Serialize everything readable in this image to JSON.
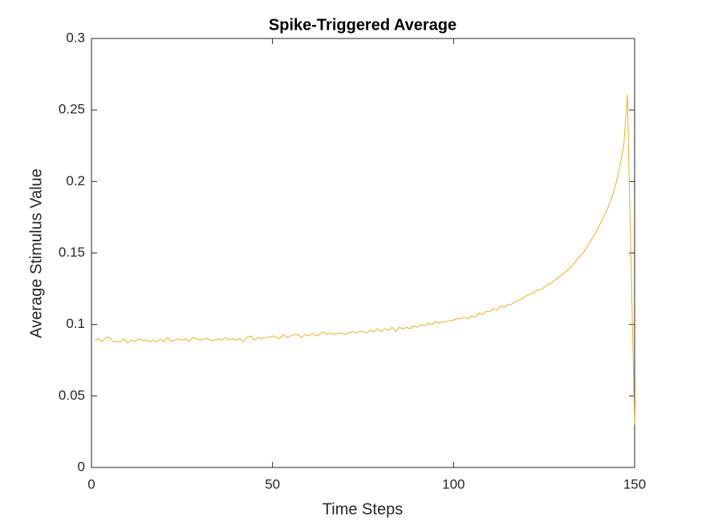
{
  "chart_data": {
    "type": "line",
    "title": "Spike-Triggered Average",
    "x_label": "Time Steps",
    "y_label": "Average Stimulus Value",
    "color": "#EDB120",
    "x": [
      1,
      2,
      3,
      4,
      5,
      6,
      7,
      8,
      9,
      10,
      11,
      12,
      13,
      14,
      15,
      16,
      17,
      18,
      19,
      20,
      21,
      22,
      23,
      24,
      25,
      26,
      27,
      28,
      29,
      30,
      31,
      32,
      33,
      34,
      35,
      36,
      37,
      38,
      39,
      40,
      41,
      42,
      43,
      44,
      45,
      46,
      47,
      48,
      49,
      50,
      51,
      52,
      53,
      54,
      55,
      56,
      57,
      58,
      59,
      60,
      61,
      62,
      63,
      64,
      65,
      66,
      67,
      68,
      69,
      70,
      71,
      72,
      73,
      74,
      75,
      76,
      77,
      78,
      79,
      80,
      81,
      82,
      83,
      84,
      85,
      86,
      87,
      88,
      89,
      90,
      91,
      92,
      93,
      94,
      95,
      96,
      97,
      98,
      99,
      100,
      101,
      102,
      103,
      104,
      105,
      106,
      107,
      108,
      109,
      110,
      111,
      112,
      113,
      114,
      115,
      116,
      117,
      118,
      119,
      120,
      121,
      122,
      123,
      124,
      125,
      126,
      127,
      128,
      129,
      130,
      131,
      132,
      133,
      134,
      135,
      136,
      137,
      138,
      139,
      140,
      141,
      142,
      143,
      144,
      145,
      146,
      147,
      148,
      149,
      150
    ],
    "values": [
      0.089,
      0.09,
      0.088,
      0.091,
      0.091,
      0.088,
      0.088,
      0.088,
      0.09,
      0.087,
      0.089,
      0.088,
      0.09,
      0.089,
      0.089,
      0.088,
      0.089,
      0.088,
      0.09,
      0.088,
      0.091,
      0.088,
      0.089,
      0.09,
      0.089,
      0.09,
      0.088,
      0.091,
      0.09,
      0.089,
      0.09,
      0.09,
      0.089,
      0.089,
      0.09,
      0.089,
      0.091,
      0.089,
      0.09,
      0.089,
      0.09,
      0.088,
      0.091,
      0.092,
      0.089,
      0.091,
      0.09,
      0.091,
      0.091,
      0.092,
      0.091,
      0.09,
      0.093,
      0.091,
      0.092,
      0.093,
      0.093,
      0.091,
      0.093,
      0.092,
      0.094,
      0.092,
      0.093,
      0.095,
      0.093,
      0.094,
      0.093,
      0.094,
      0.094,
      0.093,
      0.094,
      0.095,
      0.094,
      0.095,
      0.095,
      0.094,
      0.096,
      0.095,
      0.097,
      0.095,
      0.097,
      0.096,
      0.098,
      0.095,
      0.098,
      0.097,
      0.098,
      0.097,
      0.099,
      0.098,
      0.1,
      0.099,
      0.101,
      0.1,
      0.102,
      0.101,
      0.102,
      0.102,
      0.103,
      0.103,
      0.104,
      0.104,
      0.105,
      0.104,
      0.106,
      0.105,
      0.108,
      0.107,
      0.109,
      0.109,
      0.111,
      0.11,
      0.113,
      0.112,
      0.114,
      0.114,
      0.116,
      0.117,
      0.118,
      0.12,
      0.121,
      0.122,
      0.124,
      0.124,
      0.126,
      0.128,
      0.129,
      0.131,
      0.133,
      0.135,
      0.137,
      0.139,
      0.142,
      0.145,
      0.148,
      0.151,
      0.155,
      0.159,
      0.163,
      0.168,
      0.173,
      0.178,
      0.184,
      0.191,
      0.2,
      0.212,
      0.225,
      0.261,
      0.146,
      0.03
    ],
    "xlim": [
      0,
      150
    ],
    "xticks": [
      0,
      50,
      100,
      150
    ],
    "ylim": [
      0,
      0.3
    ],
    "yticks": [
      0,
      0.05,
      0.1,
      0.15,
      0.2,
      0.25,
      0.3
    ]
  }
}
